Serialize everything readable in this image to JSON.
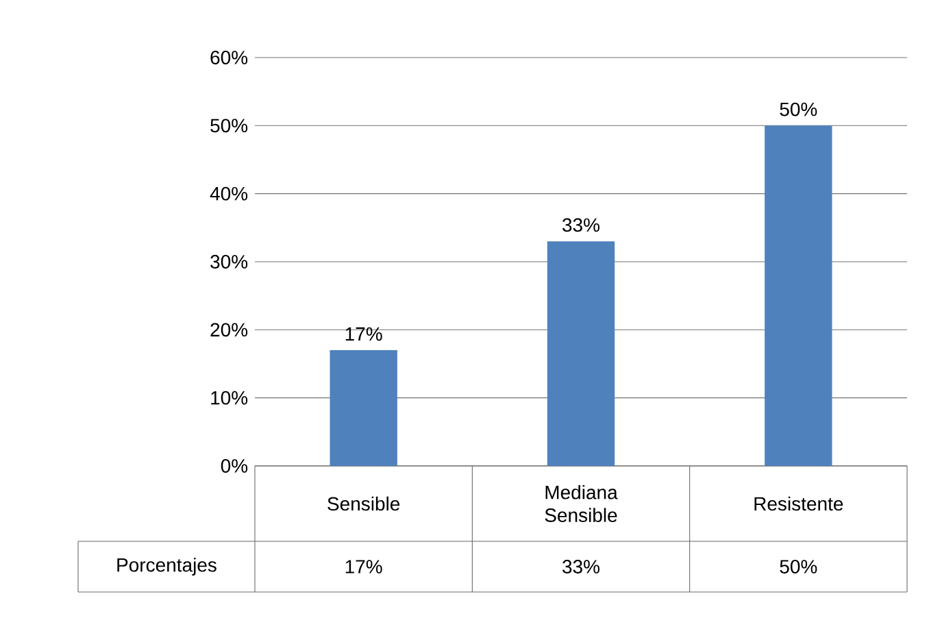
{
  "chart_data": {
    "type": "bar",
    "categories": [
      "Sensible",
      "Mediana Sensible",
      "Resistente"
    ],
    "series": [
      {
        "name": "Porcentajes",
        "color": "#4f81bd",
        "values": [
          17,
          33,
          50
        ],
        "value_labels": [
          "17%",
          "33%",
          "50%"
        ]
      }
    ],
    "ylim": [
      0,
      60
    ],
    "yticks": [
      {
        "value": 0,
        "label": "0%"
      },
      {
        "value": 10,
        "label": "10%"
      },
      {
        "value": 20,
        "label": "20%"
      },
      {
        "value": 30,
        "label": "30%"
      },
      {
        "value": 40,
        "label": "40%"
      },
      {
        "value": 50,
        "label": "50%"
      },
      {
        "value": 60,
        "label": "60%"
      }
    ],
    "grid": "y"
  }
}
